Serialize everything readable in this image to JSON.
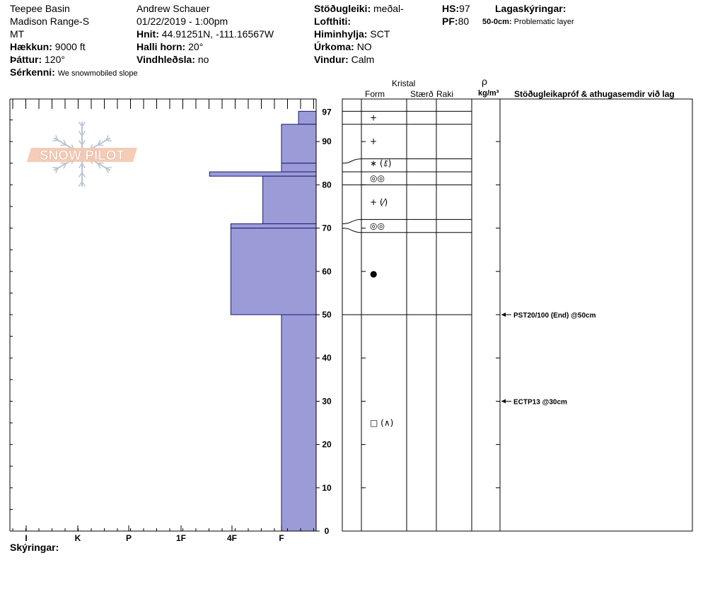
{
  "header": {
    "location": "Teepee Basin",
    "range": "Madison Range-S",
    "state": "MT",
    "elevation_label": "Hækkun:",
    "elevation_value": "9000 ft",
    "aspect_label": "Þáttur:",
    "aspect_value": "120°",
    "features_label": "Sérkenni:",
    "features_value": "We snowmobiled slope",
    "observer": "Andrew Schauer",
    "datetime": "01/22/2019 - 1:00pm",
    "coords_label": "Hnit:",
    "coords_value": "44.91251N, -111.16567W",
    "slope_label": "Halli horn:",
    "slope_value": "20°",
    "wind_loading_label": "Vindhleðsla:",
    "wind_loading_value": "no",
    "stability_label": "Stöðugleiki:",
    "stability_value": "meðal-",
    "air_temp_label": "Lofthiti:",
    "sky_label": "Himinhylja:",
    "sky_value": "SCT",
    "precip_label": "Úrkoma:",
    "precip_value": "NO",
    "wind_label": "Vindur:",
    "wind_value": "Calm",
    "hs_label": "HS:",
    "hs_value": "97",
    "pf_label": "PF:",
    "pf_value": "80",
    "layer_notes_label": "Lagaskýringar:",
    "layer_note_depth": "50-0cm:",
    "layer_note_text": "Problematic layer",
    "notes_label": "Skýringar:"
  },
  "logo": {
    "text": "SNOW PILOT"
  },
  "columns": {
    "crystal": "Kristal",
    "form": "Form",
    "size": "Stærð",
    "moisture": "Raki",
    "density_symbol": "ρ",
    "density_unit": "kg/m³",
    "tests": "Stöðugleikapróf & athugasemdir við lag"
  },
  "chart_data": {
    "type": "snow-profile",
    "y_axis": {
      "min": 0,
      "max": 97,
      "ticks": [
        0,
        10,
        20,
        30,
        40,
        50,
        60,
        70,
        80,
        90
      ],
      "top_label": "97"
    },
    "hardness_axis": {
      "categories": [
        "I",
        "K",
        "P",
        "1F",
        "4F",
        "F"
      ]
    },
    "hardness_profile": [
      {
        "top": 97,
        "bottom": 94,
        "hardness": 0.33
      },
      {
        "top": 94,
        "bottom": 85,
        "hardness": 0.65
      },
      {
        "top": 85,
        "bottom": 83,
        "hardness": 0.65
      },
      {
        "top": 83,
        "bottom": 82,
        "hardness": 2.0
      },
      {
        "top": 82,
        "bottom": 71,
        "hardness": 1.0
      },
      {
        "top": 71,
        "bottom": 70,
        "hardness": 1.6
      },
      {
        "top": 70,
        "bottom": 50,
        "hardness": 1.6
      },
      {
        "top": 50,
        "bottom": 0,
        "hardness": 0.65
      }
    ],
    "layer_boundaries": [
      97,
      94,
      86,
      83,
      80,
      72,
      69,
      50
    ],
    "depth_lines": [
      97,
      94,
      85,
      83,
      80,
      71,
      70,
      50
    ],
    "crystals": [
      {
        "depth": 95.5,
        "symbol": "+"
      },
      {
        "depth": 90,
        "symbol": "+"
      },
      {
        "depth": 85,
        "symbol": "∗ (⍋̽)"
      },
      {
        "depth": 81.5,
        "symbol": "◎◎"
      },
      {
        "depth": 76,
        "symbol": "+ (⁄)"
      },
      {
        "depth": 70.5,
        "symbol": "◎◎"
      },
      {
        "depth": 59.5,
        "symbol": "●"
      },
      {
        "depth": 25,
        "symbol": "□ (∧)"
      }
    ],
    "tests": [
      {
        "depth": 50,
        "text": "PST20/100 (End) @50cm"
      },
      {
        "depth": 30,
        "text": "ECTP13 @30cm"
      }
    ]
  }
}
